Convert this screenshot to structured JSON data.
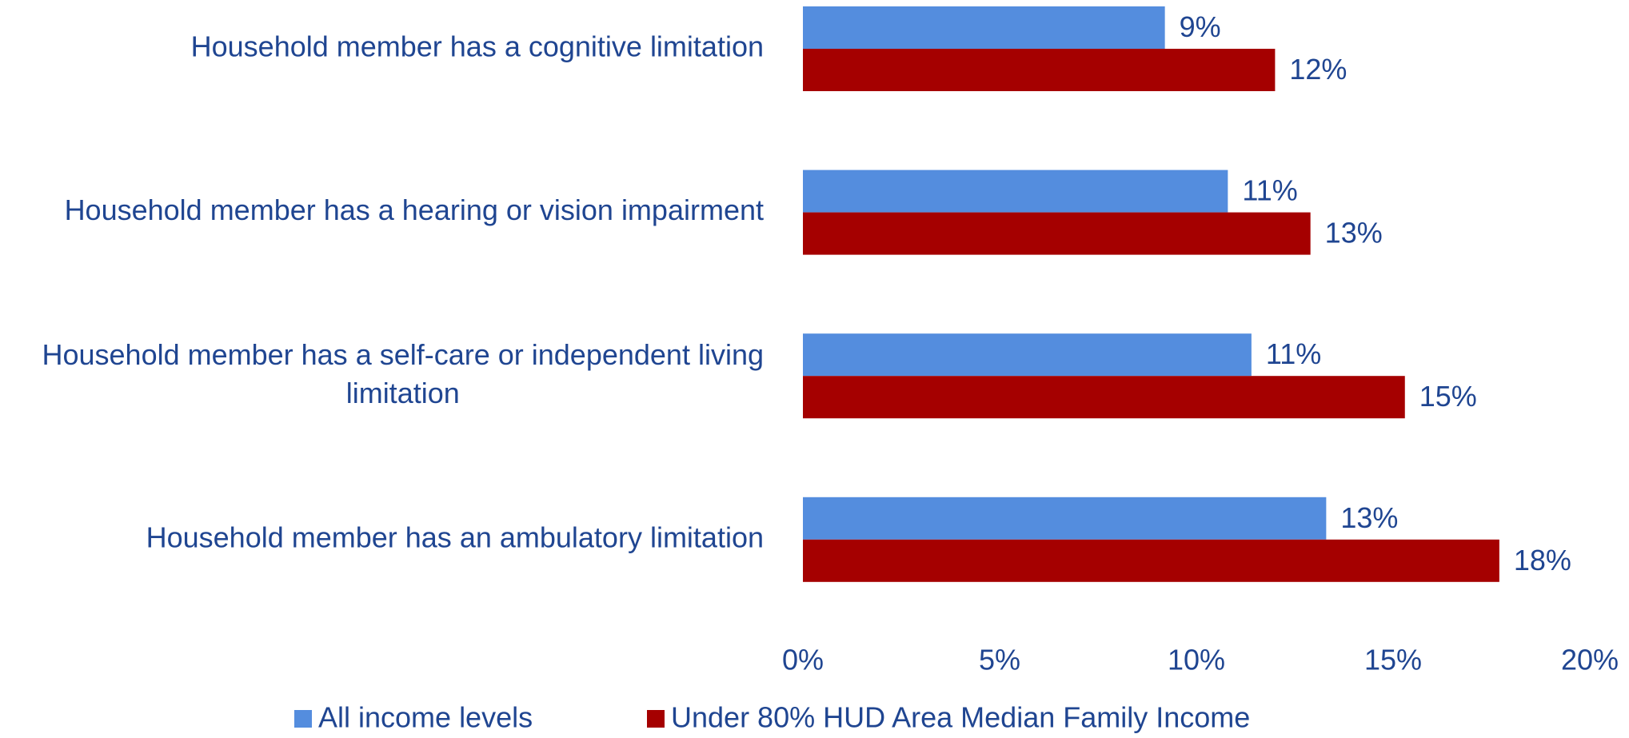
{
  "chart_data": {
    "type": "barh",
    "categories": [
      "Household member has a cognitive limitation",
      "Household member has a hearing or vision impairment",
      "Household member has a self-care or independent living limitation",
      "Household member has an ambulatory limitation"
    ],
    "series": [
      {
        "name": "All income levels",
        "color": "#548dde",
        "values": [
          9.2,
          10.8,
          11.4,
          13.3
        ],
        "value_labels": [
          "9%",
          "11%",
          "11%",
          "13%"
        ]
      },
      {
        "name": "Under 80% HUD Area Median Family Income",
        "color": "#a50000",
        "values": [
          12.0,
          12.9,
          15.3,
          17.7
        ],
        "value_labels": [
          "12%",
          "13%",
          "15%",
          "18%"
        ]
      }
    ],
    "xlim": [
      0,
      20
    ],
    "xticks": [
      {
        "value": 0,
        "label": "0%"
      },
      {
        "value": 5,
        "label": "5%"
      },
      {
        "value": 10,
        "label": "10%"
      },
      {
        "value": 15,
        "label": "15%"
      },
      {
        "value": 20,
        "label": "20%"
      }
    ],
    "grid": false,
    "legend": "bottom"
  }
}
